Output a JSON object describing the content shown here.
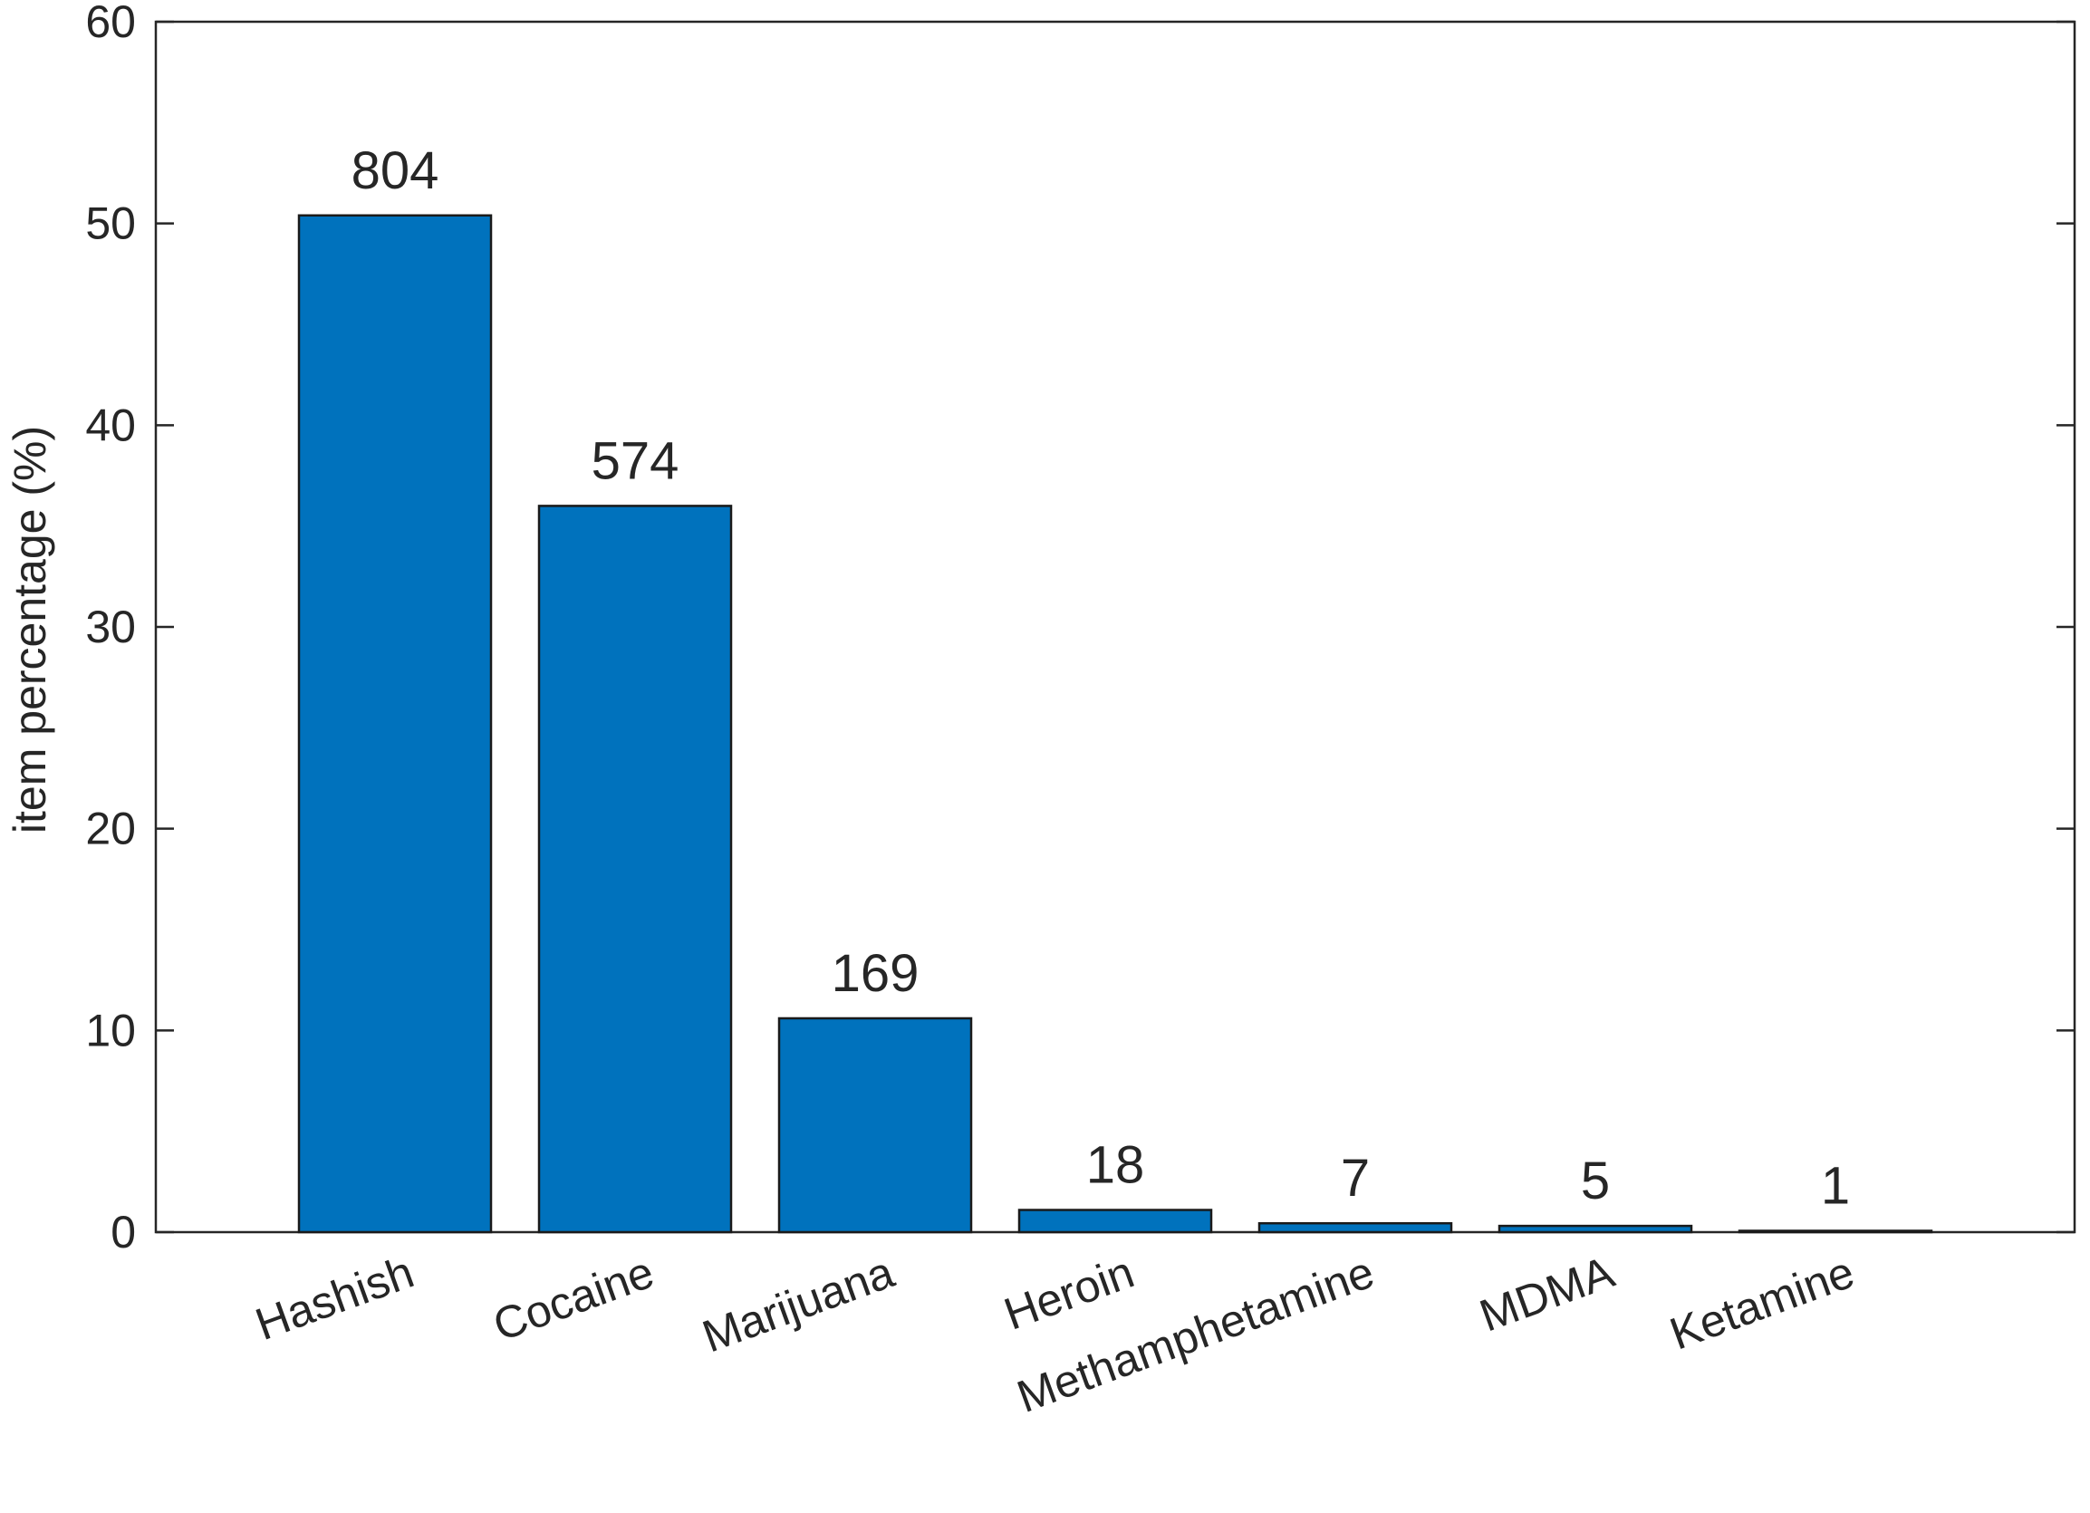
{
  "chart_data": {
    "type": "bar",
    "title": "",
    "xlabel": "",
    "ylabel": "item percentage (%)",
    "ylim": [
      0,
      60
    ],
    "yticks": [
      0,
      10,
      20,
      30,
      40,
      50,
      60
    ],
    "grid": false,
    "categories": [
      "Hashish",
      "Cocaine",
      "Marijuana",
      "Heroin",
      "Methamphetamine",
      "MDMA",
      "Ketamine"
    ],
    "values": [
      50.4,
      36.0,
      10.6,
      1.1,
      0.44,
      0.31,
      0.06
    ],
    "data_labels": [
      "804",
      "574",
      "169",
      "18",
      "7",
      "5",
      "1"
    ],
    "bar_color": "#0072BD",
    "bar_edge_color": "#1a1a1a",
    "axis_color": "#262626"
  }
}
